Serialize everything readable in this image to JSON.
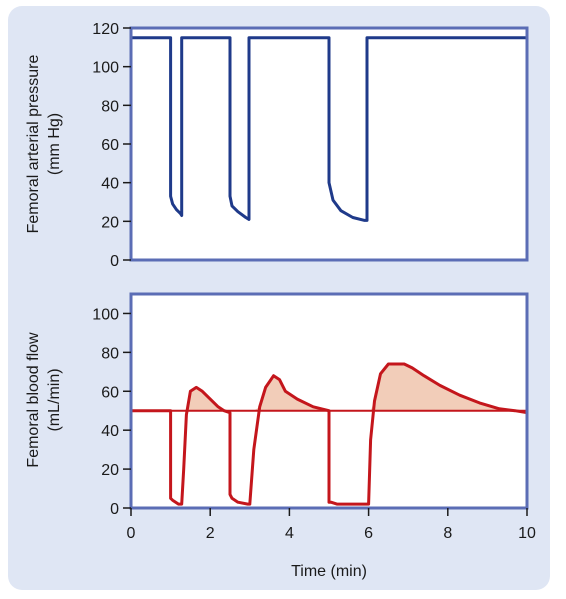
{
  "colors": {
    "panel_background": "#dfe6f4",
    "plot_background": "#ffffff",
    "axes_frame": "#5b6db5",
    "pressure_line": "#1f3a8a",
    "flow_line": "#c4161c",
    "flow_fill": "#f2cdb9"
  },
  "xaxis": {
    "label": "Time (min)",
    "range": [
      0,
      10
    ],
    "ticks": [
      "0",
      "2",
      "4",
      "6",
      "8",
      "10"
    ]
  },
  "chart_data": [
    {
      "type": "line",
      "ylabel": [
        "Femoral arterial pressure",
        "(mm Hg)"
      ],
      "xlim": [
        0,
        10
      ],
      "ylim": [
        0,
        120
      ],
      "yticks": [
        "0",
        "20",
        "40",
        "60",
        "80",
        "100",
        "120"
      ],
      "grid": false,
      "series": [
        {
          "x": [
            0,
            1.0,
            1.0,
            1.05,
            1.15,
            1.25,
            1.28,
            1.28,
            2.5,
            2.5,
            2.55,
            2.7,
            2.9,
            2.98,
            2.98,
            5.0,
            5.0,
            5.1,
            5.3,
            5.6,
            5.9,
            5.96,
            5.96,
            10
          ],
          "y": [
            115,
            115,
            33,
            29,
            26,
            24,
            23,
            115,
            115,
            33,
            28,
            25,
            22,
            21,
            115,
            115,
            40,
            31,
            25.5,
            22,
            20.5,
            20.5,
            115,
            115
          ]
        }
      ]
    },
    {
      "type": "area",
      "ylabel": [
        "Femoral blood flow",
        "(mL/min)"
      ],
      "xlim": [
        0,
        10
      ],
      "ylim": [
        0,
        110
      ],
      "yticks": [
        "0",
        "20",
        "40",
        "60",
        "80",
        "100"
      ],
      "grid": false,
      "baseline": 50,
      "series": [
        {
          "x": [
            0,
            1.0,
            1.0,
            1.05,
            1.2,
            1.28,
            1.33,
            1.4,
            1.5,
            1.65,
            1.8,
            2.0,
            2.2,
            2.35,
            2.5,
            2.5,
            2.55,
            2.7,
            2.95,
            3.0,
            3.1,
            3.25,
            3.4,
            3.6,
            3.75,
            3.9,
            4.2,
            4.6,
            5.0,
            5.0,
            5.05,
            5.2,
            5.6,
            5.95,
            6.0,
            6.05,
            6.15,
            6.3,
            6.5,
            6.7,
            6.9,
            7.1,
            7.4,
            7.8,
            8.3,
            8.8,
            9.3,
            9.7,
            10
          ],
          "y": [
            50,
            50,
            5,
            4,
            2,
            2,
            20,
            48,
            60,
            62,
            60,
            56,
            52,
            50,
            49,
            7,
            5,
            3,
            2,
            2,
            30,
            52,
            62,
            68,
            66,
            60,
            56,
            52,
            50,
            3,
            3,
            2,
            2,
            2,
            2,
            35,
            55,
            69,
            74,
            74,
            74,
            72,
            68,
            63,
            58,
            54,
            51,
            50,
            49
          ]
        }
      ],
      "fill_segments": [
        {
          "x": [
            1.33,
            1.4,
            1.5,
            1.65,
            1.8,
            2.0,
            2.2,
            2.35,
            2.5
          ]
        },
        {
          "x": [
            3.1,
            3.25,
            3.4,
            3.6,
            3.75,
            3.9,
            4.2,
            4.6,
            5.0
          ]
        },
        {
          "x": [
            6.05,
            6.15,
            6.3,
            6.5,
            6.7,
            6.9,
            7.1,
            7.4,
            7.8,
            8.3,
            8.8,
            9.3,
            9.7,
            10
          ]
        }
      ]
    }
  ]
}
